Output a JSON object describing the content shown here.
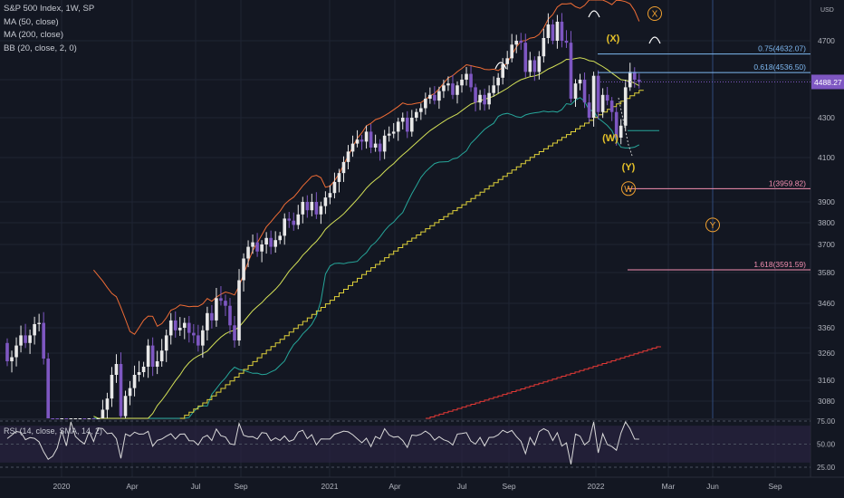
{
  "legend": {
    "title": "S&P 500 Index, 1W, SP",
    "ma50": "MA (50, close)",
    "ma200": "MA (200, close)",
    "bb": "BB (20, close, 2, 0)"
  },
  "currency": {
    "top": "USD",
    "bottom": "USD"
  },
  "last_price": "4488.27",
  "rsi_legend": "RSI (14, close, SMA, 14, 2)",
  "colors": {
    "background": "#131722",
    "up": "#e8e8e8",
    "down": "#7e57c2",
    "ma50": "#d4e157",
    "ma200": "#e0d23a",
    "bb_upper": "#ef6c35",
    "bb_lower": "#26a69a",
    "fib_75": "#7eb8f0",
    "fib_1": "#f48fb1",
    "wave": "#f0a030",
    "red_line": "#e53935",
    "rsi": "#d9d9d9",
    "rsi_band": "#2a2440",
    "price_tag": "#7e57c2"
  },
  "chart_data": {
    "type": "candlestick",
    "title": "S&P 500 Index, 1W, SP",
    "x_ticks": [
      "2020",
      "Apr",
      "Jul",
      "Sep",
      "2021",
      "Apr",
      "Jul",
      "Sep",
      "2022",
      "Mar",
      "Jun",
      "Sep"
    ],
    "y_ticks": [
      4700,
      4500,
      4300,
      4100,
      3900,
      3800,
      3700,
      3580,
      3460,
      3360,
      3260,
      3160,
      3080
    ],
    "y_range": [
      3000,
      4850
    ],
    "last_price": 4488.27,
    "rsi": {
      "label": "RSI (14, close, SMA, 14, 2)",
      "levels": [
        75.0,
        50.0,
        25.0
      ],
      "band": [
        30,
        70
      ]
    },
    "fib_levels": [
      {
        "label": "0.75(4632.07)",
        "value": 4632.07
      },
      {
        "label": "0.618(4536.50)",
        "value": 4536.5
      },
      {
        "label": "1(3959.82)",
        "value": 3959.82
      },
      {
        "label": "1.618(3591.59)",
        "value": 3591.59
      }
    ],
    "wave_labels": [
      {
        "label": "(X)",
        "value": 4710
      },
      {
        "label": "(W)",
        "value": 4200
      },
      {
        "label": "(Y)",
        "value": 4060
      },
      {
        "label": "X",
        "value": 4800,
        "circled": true
      },
      {
        "label": "W",
        "value": 3960,
        "circled": true
      },
      {
        "label": "Y",
        "value": 3790,
        "circled": true
      }
    ]
  }
}
